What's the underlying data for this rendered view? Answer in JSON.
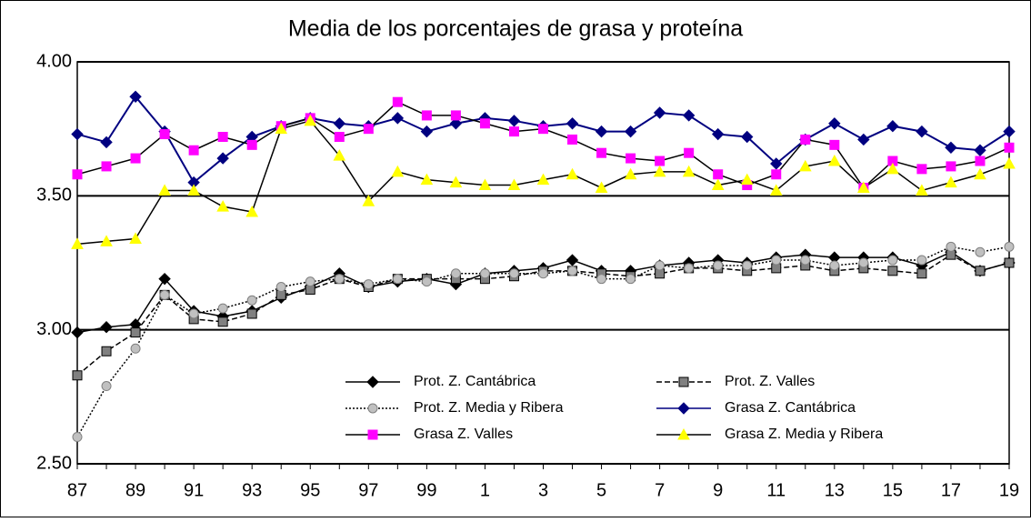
{
  "chart_data": {
    "type": "line",
    "title": "Media de los porcentajes de grasa y proteína",
    "categories": [
      "87",
      null,
      "89",
      null,
      "91",
      null,
      "93",
      null,
      "95",
      null,
      "97",
      null,
      "99",
      null,
      "1",
      null,
      "3",
      null,
      "5",
      null,
      "7",
      null,
      "9",
      null,
      "11",
      null,
      "13",
      null,
      "15",
      null,
      "17",
      null,
      "19"
    ],
    "ylim": [
      2.5,
      4.0
    ],
    "yticks": [
      {
        "value": 2.5,
        "label": "2.50"
      },
      {
        "value": 3.0,
        "label": "3.00"
      },
      {
        "value": 3.5,
        "label": "3.50"
      },
      {
        "value": 4.0,
        "label": "4.00"
      }
    ],
    "grid": true,
    "series": [
      {
        "name": "Prot. Z. Cantábrica",
        "color": "#000000",
        "line_color": "#000000",
        "dash": "solid",
        "marker": "diamond",
        "values": [
          2.99,
          3.01,
          3.02,
          3.19,
          3.07,
          3.05,
          3.07,
          3.12,
          3.16,
          3.21,
          3.16,
          3.18,
          3.19,
          3.17,
          3.21,
          3.22,
          3.23,
          3.26,
          3.22,
          3.22,
          3.24,
          3.25,
          3.26,
          3.25,
          3.27,
          3.28,
          3.27,
          3.27,
          3.27,
          3.24,
          3.29,
          3.22,
          3.25
        ]
      },
      {
        "name": "Prot. Z. Valles",
        "color": "#808080",
        "line_color": "#000000",
        "dash": "dashed",
        "marker": "square",
        "values": [
          2.83,
          2.92,
          2.99,
          3.13,
          3.04,
          3.03,
          3.06,
          3.13,
          3.15,
          3.19,
          3.16,
          3.19,
          3.19,
          3.19,
          3.19,
          3.2,
          3.22,
          3.22,
          3.21,
          3.2,
          3.21,
          3.23,
          3.23,
          3.22,
          3.23,
          3.24,
          3.22,
          3.23,
          3.22,
          3.21,
          3.28,
          3.22,
          3.25
        ]
      },
      {
        "name": "Prot. Z. Media y Ribera",
        "color": "#c0c0c0",
        "line_color": "#000000",
        "dash": "dotted",
        "marker": "circle",
        "values": [
          2.6,
          2.79,
          2.93,
          3.13,
          3.06,
          3.08,
          3.11,
          3.16,
          3.18,
          3.19,
          3.17,
          3.19,
          3.18,
          3.21,
          3.21,
          3.21,
          3.21,
          3.22,
          3.19,
          3.19,
          3.24,
          3.23,
          3.24,
          3.24,
          3.26,
          3.26,
          3.24,
          3.25,
          3.26,
          3.26,
          3.31,
          3.29,
          3.31
        ]
      },
      {
        "name": "Grasa Z. Cantábrica",
        "color": "#000080",
        "line_color": "#000080",
        "dash": "solid",
        "marker": "diamond",
        "values": [
          3.73,
          3.7,
          3.87,
          3.74,
          3.55,
          3.64,
          3.72,
          3.76,
          3.79,
          3.77,
          3.76,
          3.79,
          3.74,
          3.77,
          3.79,
          3.78,
          3.76,
          3.77,
          3.74,
          3.74,
          3.81,
          3.8,
          3.73,
          3.72,
          3.62,
          3.71,
          3.77,
          3.71,
          3.76,
          3.74,
          3.68,
          3.67,
          3.74
        ]
      },
      {
        "name": "Grasa Z. Valles",
        "color": "#ff00ff",
        "line_color": "#000000",
        "dash": "solid",
        "marker": "square",
        "values": [
          3.58,
          3.61,
          3.64,
          3.73,
          3.67,
          3.72,
          3.69,
          3.76,
          3.79,
          3.72,
          3.75,
          3.85,
          3.8,
          3.8,
          3.77,
          3.74,
          3.75,
          3.71,
          3.66,
          3.64,
          3.63,
          3.66,
          3.58,
          3.54,
          3.58,
          3.71,
          3.69,
          3.53,
          3.63,
          3.6,
          3.61,
          3.63,
          3.68
        ]
      },
      {
        "name": "Grasa Z. Media y Ribera",
        "color": "#ffff00",
        "line_color": "#000000",
        "dash": "solid",
        "marker": "triangle",
        "values": [
          3.32,
          3.33,
          3.34,
          3.52,
          3.52,
          3.46,
          3.44,
          3.75,
          3.78,
          3.65,
          3.48,
          3.59,
          3.56,
          3.55,
          3.54,
          3.54,
          3.56,
          3.58,
          3.53,
          3.58,
          3.59,
          3.59,
          3.54,
          3.56,
          3.52,
          3.61,
          3.63,
          3.53,
          3.6,
          3.52,
          3.55,
          3.58,
          3.62
        ]
      }
    ]
  }
}
